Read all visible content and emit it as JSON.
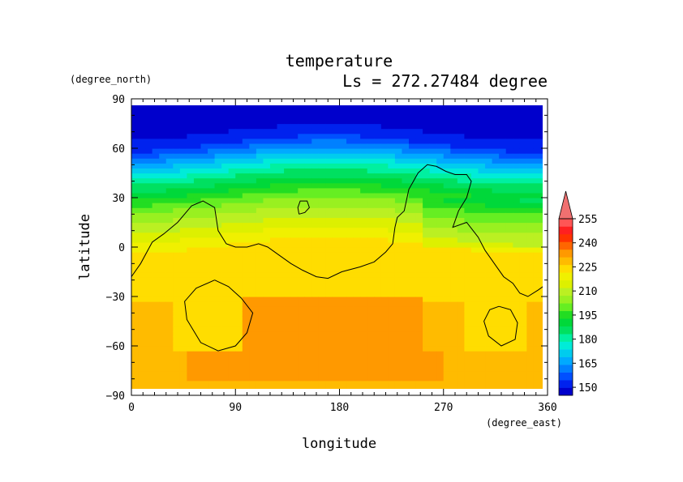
{
  "chart_data": {
    "type": "heatmap",
    "title": "temperature",
    "subtitle": "Ls = 272.27484 degree",
    "xlabel": "longitude",
    "ylabel": "latitude",
    "x_units": "(degree_east)",
    "y_units": "(degree_north)",
    "xlim": [
      0,
      360
    ],
    "ylim": [
      -90,
      90
    ],
    "data_lat_range": [
      -87,
      86
    ],
    "x_ticks": [
      0,
      90,
      180,
      270,
      360
    ],
    "y_ticks": [
      -90,
      -60,
      -30,
      0,
      30,
      60,
      90
    ],
    "x_tick_labels": [
      "0",
      "90",
      "180",
      "270",
      "360"
    ],
    "y_tick_labels": [
      "−90",
      "−60",
      "−30",
      "0",
      "30",
      "60",
      "90"
    ],
    "colorbar": {
      "levels": [
        145,
        150,
        155,
        160,
        165,
        170,
        175,
        180,
        185,
        190,
        195,
        200,
        205,
        210,
        215,
        220,
        225,
        230,
        235,
        240,
        245,
        250,
        255,
        260
      ],
      "colors": [
        "#0000cc",
        "#0022ee",
        "#0050ff",
        "#0080ff",
        "#00aaff",
        "#00ccee",
        "#00ecd8",
        "#00f0a0",
        "#00e060",
        "#00d83a",
        "#22dd22",
        "#66ee22",
        "#99f020",
        "#bbf022",
        "#ddf000",
        "#f0f000",
        "#ffdd00",
        "#ffbb00",
        "#ff9900",
        "#ff6600",
        "#ff3300",
        "#ff2020",
        "#ff5555",
        "#f07070"
      ],
      "tick_labels": [
        "150",
        "165",
        "180",
        "195",
        "210",
        "225",
        "240",
        "255"
      ],
      "extend": "max"
    },
    "contour_description": "black topography contour lines overlaid",
    "grid": false
  },
  "colors": {
    "axes": "#000000",
    "contour": "#000000",
    "background": "#ffffff"
  }
}
